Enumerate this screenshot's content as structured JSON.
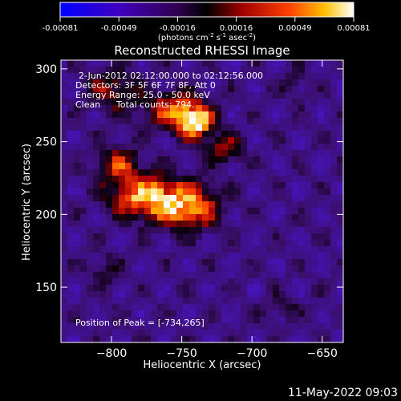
{
  "colorbar": {
    "ticks": [
      "-0.00081",
      "-0.00049",
      "-0.00016",
      "0.00016",
      "0.00049",
      "0.00081"
    ],
    "unit_label_parts": {
      "base": "(photons cm",
      "exp1": "-2",
      "mid1": " s",
      "exp2": "-1",
      "mid2": " asec",
      "exp3": "-2",
      "end": ")"
    }
  },
  "chart_data": {
    "type": "heatmap",
    "title": "Reconstructed RHESSI Image",
    "xlabel": "Heliocentric X (arcsec)",
    "ylabel": "Heliocentric Y (arcsec)",
    "xlim": [
      -836,
      -635
    ],
    "ylim": [
      112,
      306
    ],
    "x_ticks": [
      -800,
      -750,
      -700,
      -650
    ],
    "x_tick_labels": [
      "−800",
      "−750",
      "−700",
      "−650"
    ],
    "y_ticks": [
      150,
      200,
      250,
      300
    ],
    "y_tick_labels": [
      "150",
      "200",
      "250",
      "300"
    ],
    "value_range": [
      -0.00081,
      0.00081
    ],
    "peak": {
      "x": -734,
      "y": 265
    },
    "bright_regions": [
      {
        "x": -740,
        "y": 263,
        "rx": 12,
        "ry": 10,
        "level": 0.95
      },
      {
        "x": -755,
        "y": 272,
        "rx": 20,
        "ry": 12,
        "level": 0.7
      },
      {
        "x": -775,
        "y": 212,
        "rx": 25,
        "ry": 14,
        "level": 0.85
      },
      {
        "x": -745,
        "y": 205,
        "rx": 20,
        "ry": 14,
        "level": 0.8
      },
      {
        "x": -795,
        "y": 235,
        "rx": 14,
        "ry": 12,
        "level": 0.65
      },
      {
        "x": -800,
        "y": 285,
        "rx": 18,
        "ry": 14,
        "level": 0.55
      },
      {
        "x": -720,
        "y": 245,
        "rx": 14,
        "ry": 10,
        "level": 0.55
      },
      {
        "x": -805,
        "y": 162,
        "rx": 10,
        "ry": 10,
        "level": 0.45
      },
      {
        "x": -680,
        "y": 135,
        "rx": 12,
        "ry": 8,
        "level": 0.45
      },
      {
        "x": -670,
        "y": 290,
        "rx": 10,
        "ry": 10,
        "level": 0.4
      }
    ],
    "annotations": {
      "time_range": "2-Jun-2012 02:12:00.000 to 02:12:56.000",
      "detectors": "Detectors: 3F 5F 6F 7F 8F, Att 0",
      "energy": "Energy Range: 25.0 - 50.0 keV",
      "clean_label": "Clean",
      "total_counts": "Total counts: 794.",
      "peak_label": "Position of Peak = [-734,265]"
    }
  },
  "footer": {
    "timestamp": "11-May-2022 09:03"
  }
}
